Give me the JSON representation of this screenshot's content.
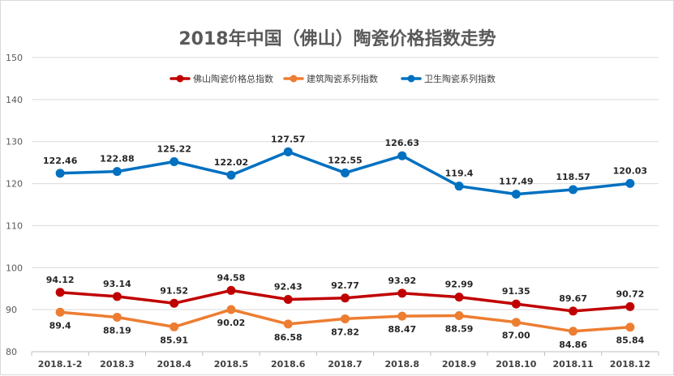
{
  "chart_data": {
    "type": "line",
    "title": "2018年中国（佛山）陶瓷价格指数走势",
    "xlabel": "",
    "ylabel": "",
    "ylim": [
      80,
      150
    ],
    "yticks": [
      80,
      90,
      100,
      110,
      120,
      130,
      140,
      150
    ],
    "grid": true,
    "legend_position": "top-center",
    "categories": [
      "2018.1-2",
      "2018.3",
      "2018.4",
      "2018.5",
      "2018.6",
      "2018.7",
      "2018.8",
      "2018.9",
      "2018.10",
      "2018.11",
      "2018.12"
    ],
    "series": [
      {
        "name": "佛山陶瓷价格总指数",
        "color": "#c00000",
        "values": [
          94.12,
          93.14,
          91.52,
          94.58,
          92.43,
          92.77,
          93.92,
          92.99,
          91.35,
          89.67,
          90.72
        ],
        "labels": [
          "94.12",
          "93.14",
          "91.52",
          "94.58",
          "92.43",
          "92.77",
          "93.92",
          "92.99",
          "91.35",
          "89.67",
          "90.72"
        ],
        "label_position": "above"
      },
      {
        "name": "建筑陶瓷系列指数",
        "color": "#ed7d31",
        "values": [
          89.4,
          88.19,
          85.91,
          90.02,
          86.58,
          87.82,
          88.47,
          88.59,
          87.0,
          84.86,
          85.84
        ],
        "labels": [
          "89.4",
          "88.19",
          "85.91",
          "90.02",
          "86.58",
          "87.82",
          "88.47",
          "88.59",
          "87.00",
          "84.86",
          "85.84"
        ],
        "label_position": "below"
      },
      {
        "name": "卫生陶瓷系列指数",
        "color": "#0070c0",
        "values": [
          122.46,
          122.88,
          125.22,
          122.02,
          127.57,
          122.55,
          126.63,
          119.4,
          117.49,
          118.57,
          120.03
        ],
        "labels": [
          "122.46",
          "122.88",
          "125.22",
          "122.02",
          "127.57",
          "122.55",
          "126.63",
          "119.4",
          "117.49",
          "118.57",
          "120.03"
        ],
        "label_position": "above"
      }
    ]
  }
}
